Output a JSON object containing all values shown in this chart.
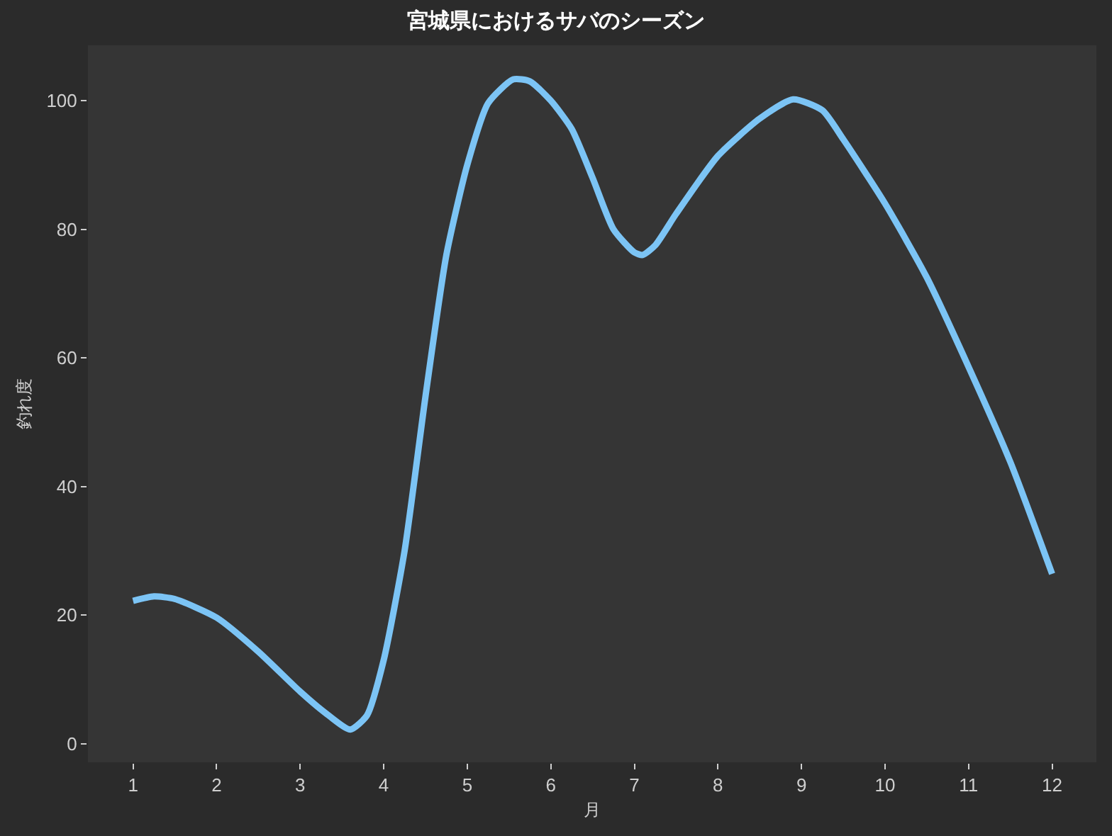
{
  "chart_data": {
    "type": "line",
    "title": "宮城県におけるサバのシーズン",
    "xlabel": "月",
    "ylabel": "釣れ度",
    "x": [
      1,
      1.25,
      1.5,
      2,
      2.5,
      3,
      3.3,
      3.6,
      3.8,
      4,
      4.25,
      4.5,
      4.75,
      5,
      5.25,
      5.55,
      5.75,
      6,
      6.25,
      6.5,
      6.75,
      7,
      7.1,
      7.25,
      7.5,
      8,
      8.5,
      8.9,
      9.25,
      9.5,
      10,
      10.5,
      11,
      11.5,
      12
    ],
    "series": [
      {
        "color": "#7cc4f5",
        "values": [
          22.2,
          22.9,
          22.5,
          19.6,
          14.3,
          8.1,
          4.8,
          2.2,
          4.4,
          13,
          30,
          54,
          76,
          90,
          99.6,
          103.3,
          103,
          100,
          95.6,
          88,
          80,
          76.4,
          76,
          77.5,
          82.4,
          91.4,
          97.2,
          100.2,
          98.5,
          94,
          84,
          72.5,
          58.6,
          43.8,
          26.4
        ]
      }
    ],
    "xlim": [
      0.46,
      12.53
    ],
    "xticks": [
      1,
      2,
      3,
      4,
      5,
      6,
      7,
      8,
      9,
      10,
      11,
      12
    ],
    "ylim": [
      -2.9,
      108.6
    ],
    "yticks": [
      0,
      20,
      40,
      60,
      80,
      100
    ],
    "grid": false,
    "marker": "none",
    "line_style": "solid"
  }
}
